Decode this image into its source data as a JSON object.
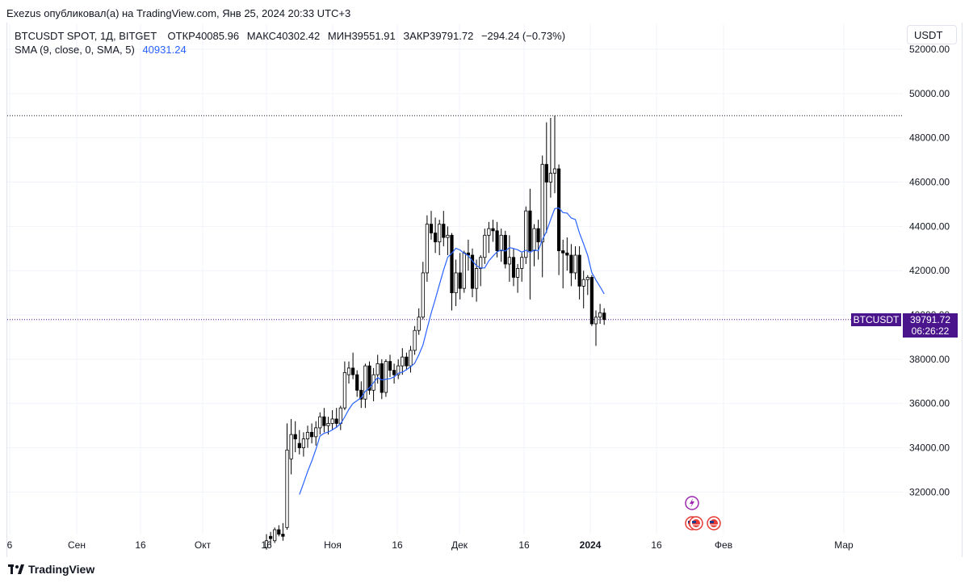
{
  "header": {
    "publisher": "Exezus опубликовал(а) на TradingView.com, Янв 25, 2024 20:33 UTC+3"
  },
  "legend": {
    "symbol": "BTCUSDT SPOT, 1Д, BITGET",
    "open_label": "ОТКР",
    "open_value": "40085.96",
    "high_label": "МАКС",
    "high_value": "40302.42",
    "low_label": "МИН",
    "low_value": "39551.91",
    "close_label": "ЗАКР",
    "close_value": "39791.72",
    "change": "−294.24 (−0.73%)",
    "sma_label": "SMA (9, close, 0, SMA, 5)",
    "sma_value": "40931.24"
  },
  "toolbar": {
    "currency": "USDT"
  },
  "price_badge": {
    "symbol": "BTCUSDT",
    "price": "39791.72",
    "countdown": "06:26:22"
  },
  "colors": {
    "candle_up": "#ffffff",
    "candle_down": "#000000",
    "candle_border": "#000000",
    "sma_line": "#2962ff",
    "price_badge": "#4a148c",
    "high_line": "#131722",
    "price_line": "#4a148c"
  },
  "footer": {
    "brand": "TradingView"
  },
  "chart_data": {
    "type": "candlestick",
    "y_axis_ticks": [
      32000,
      34000,
      36000,
      38000,
      40000,
      42000,
      44000,
      46000,
      48000,
      50000,
      52000
    ],
    "y_axis_labels": [
      "32000.00",
      "34000.00",
      "36000.00",
      "38000.00",
      "40000.00",
      "42000.00",
      "44000.00",
      "46000.00",
      "48000.00",
      "50000.00",
      "52000.00"
    ],
    "x_axis_labels": [
      "6",
      "Сен",
      "16",
      "Окт",
      "16",
      "Ноя",
      "16",
      "Дек",
      "16",
      "2024",
      "16",
      "Фев",
      "Мар"
    ],
    "high_line": 49000,
    "last_price": 39791.72,
    "candles_start_index": 0,
    "candles": [
      [
        29500,
        30100,
        29400,
        29800
      ],
      [
        30000,
        30200,
        29600,
        29900
      ],
      [
        29800,
        30400,
        29700,
        30300
      ],
      [
        30300,
        30500,
        30000,
        30100
      ],
      [
        30100,
        30600,
        29800,
        30000
      ],
      [
        30400,
        35100,
        30300,
        33900
      ],
      [
        33500,
        35300,
        32800,
        34600
      ],
      [
        34600,
        35200,
        33800,
        34400
      ],
      [
        34200,
        34800,
        33700,
        34000
      ],
      [
        34000,
        34700,
        33600,
        34400
      ],
      [
        34400,
        35000,
        34000,
        34700
      ],
      [
        34700,
        35100,
        34200,
        34500
      ],
      [
        34500,
        35200,
        34100,
        34900
      ],
      [
        34900,
        35600,
        34600,
        35400
      ],
      [
        35400,
        35800,
        34700,
        35000
      ],
      [
        35000,
        35400,
        34600,
        35100
      ],
      [
        35100,
        35700,
        34800,
        35300
      ],
      [
        35300,
        35800,
        34900,
        35100
      ],
      [
        35100,
        35900,
        34800,
        35800
      ],
      [
        35800,
        37900,
        35700,
        37400
      ],
      [
        37300,
        37900,
        36900,
        37600
      ],
      [
        37600,
        38300,
        37100,
        37300
      ],
      [
        37300,
        37500,
        36300,
        36600
      ],
      [
        36600,
        37000,
        35800,
        36200
      ],
      [
        36200,
        37800,
        35800,
        37700
      ],
      [
        37700,
        37900,
        36400,
        36600
      ],
      [
        36600,
        37600,
        36100,
        37300
      ],
      [
        37300,
        38200,
        36900,
        37800
      ],
      [
        37800,
        38000,
        36200,
        36500
      ],
      [
        36500,
        38000,
        36300,
        37900
      ],
      [
        37900,
        38200,
        37200,
        37500
      ],
      [
        37500,
        37800,
        36900,
        37300
      ],
      [
        37300,
        38000,
        37100,
        37700
      ],
      [
        37700,
        38500,
        37300,
        38100
      ],
      [
        38100,
        38300,
        37500,
        37700
      ],
      [
        37700,
        38600,
        37400,
        38400
      ],
      [
        38400,
        39500,
        38200,
        39300
      ],
      [
        39300,
        40300,
        39100,
        39900
      ],
      [
        39900,
        42400,
        39800,
        41900
      ],
      [
        41900,
        44500,
        41500,
        44100
      ],
      [
        44100,
        44700,
        43400,
        43700
      ],
      [
        43700,
        44400,
        42800,
        43300
      ],
      [
        43300,
        44300,
        42700,
        44100
      ],
      [
        44100,
        44700,
        43100,
        43500
      ],
      [
        43500,
        44000,
        42700,
        43600
      ],
      [
        43600,
        43700,
        40200,
        41000
      ],
      [
        41000,
        42500,
        40400,
        41900
      ],
      [
        41900,
        42800,
        40700,
        41200
      ],
      [
        41200,
        42900,
        41000,
        42800
      ],
      [
        42800,
        43400,
        42000,
        42700
      ],
      [
        42700,
        43000,
        40800,
        41200
      ],
      [
        41200,
        42500,
        40600,
        42100
      ],
      [
        42100,
        42700,
        41300,
        42600
      ],
      [
        42600,
        43900,
        42300,
        43600
      ],
      [
        43600,
        44200,
        42800,
        43900
      ],
      [
        43900,
        44300,
        43300,
        43800
      ],
      [
        43800,
        44200,
        42600,
        42900
      ],
      [
        42900,
        43900,
        42400,
        43600
      ],
      [
        43600,
        43800,
        42100,
        42300
      ],
      [
        42300,
        43600,
        41500,
        42600
      ],
      [
        42600,
        43000,
        41300,
        41700
      ],
      [
        41700,
        42300,
        41000,
        42100
      ],
      [
        42100,
        42800,
        41500,
        42600
      ],
      [
        42600,
        44900,
        42300,
        44700
      ],
      [
        44700,
        45700,
        40700,
        42900
      ],
      [
        42900,
        44100,
        42200,
        43900
      ],
      [
        43900,
        44300,
        42500,
        43300
      ],
      [
        43300,
        47200,
        41700,
        46800
      ],
      [
        46800,
        48700,
        43700,
        46000
      ],
      [
        46000,
        48900,
        45300,
        46400
      ],
      [
        46400,
        49000,
        45500,
        46600
      ],
      [
        46600,
        46800,
        41800,
        42900
      ],
      [
        42900,
        43400,
        41200,
        42800
      ],
      [
        42800,
        43500,
        42000,
        42700
      ],
      [
        42700,
        43200,
        41300,
        41900
      ],
      [
        41900,
        43100,
        41600,
        42700
      ],
      [
        42700,
        43100,
        40700,
        41300
      ],
      [
        41300,
        42000,
        40300,
        41600
      ],
      [
        41600,
        41800,
        40900,
        41700
      ],
      [
        41700,
        41800,
        39500,
        39600
      ],
      [
        39600,
        40200,
        38600,
        39900
      ],
      [
        39900,
        40500,
        39600,
        40100
      ],
      [
        40085.96,
        40302.42,
        39551.91,
        39791.72
      ]
    ],
    "sma_series": {
      "name": "SMA (9, close, 0, SMA, 5)",
      "last_value": 40931.24
    }
  }
}
